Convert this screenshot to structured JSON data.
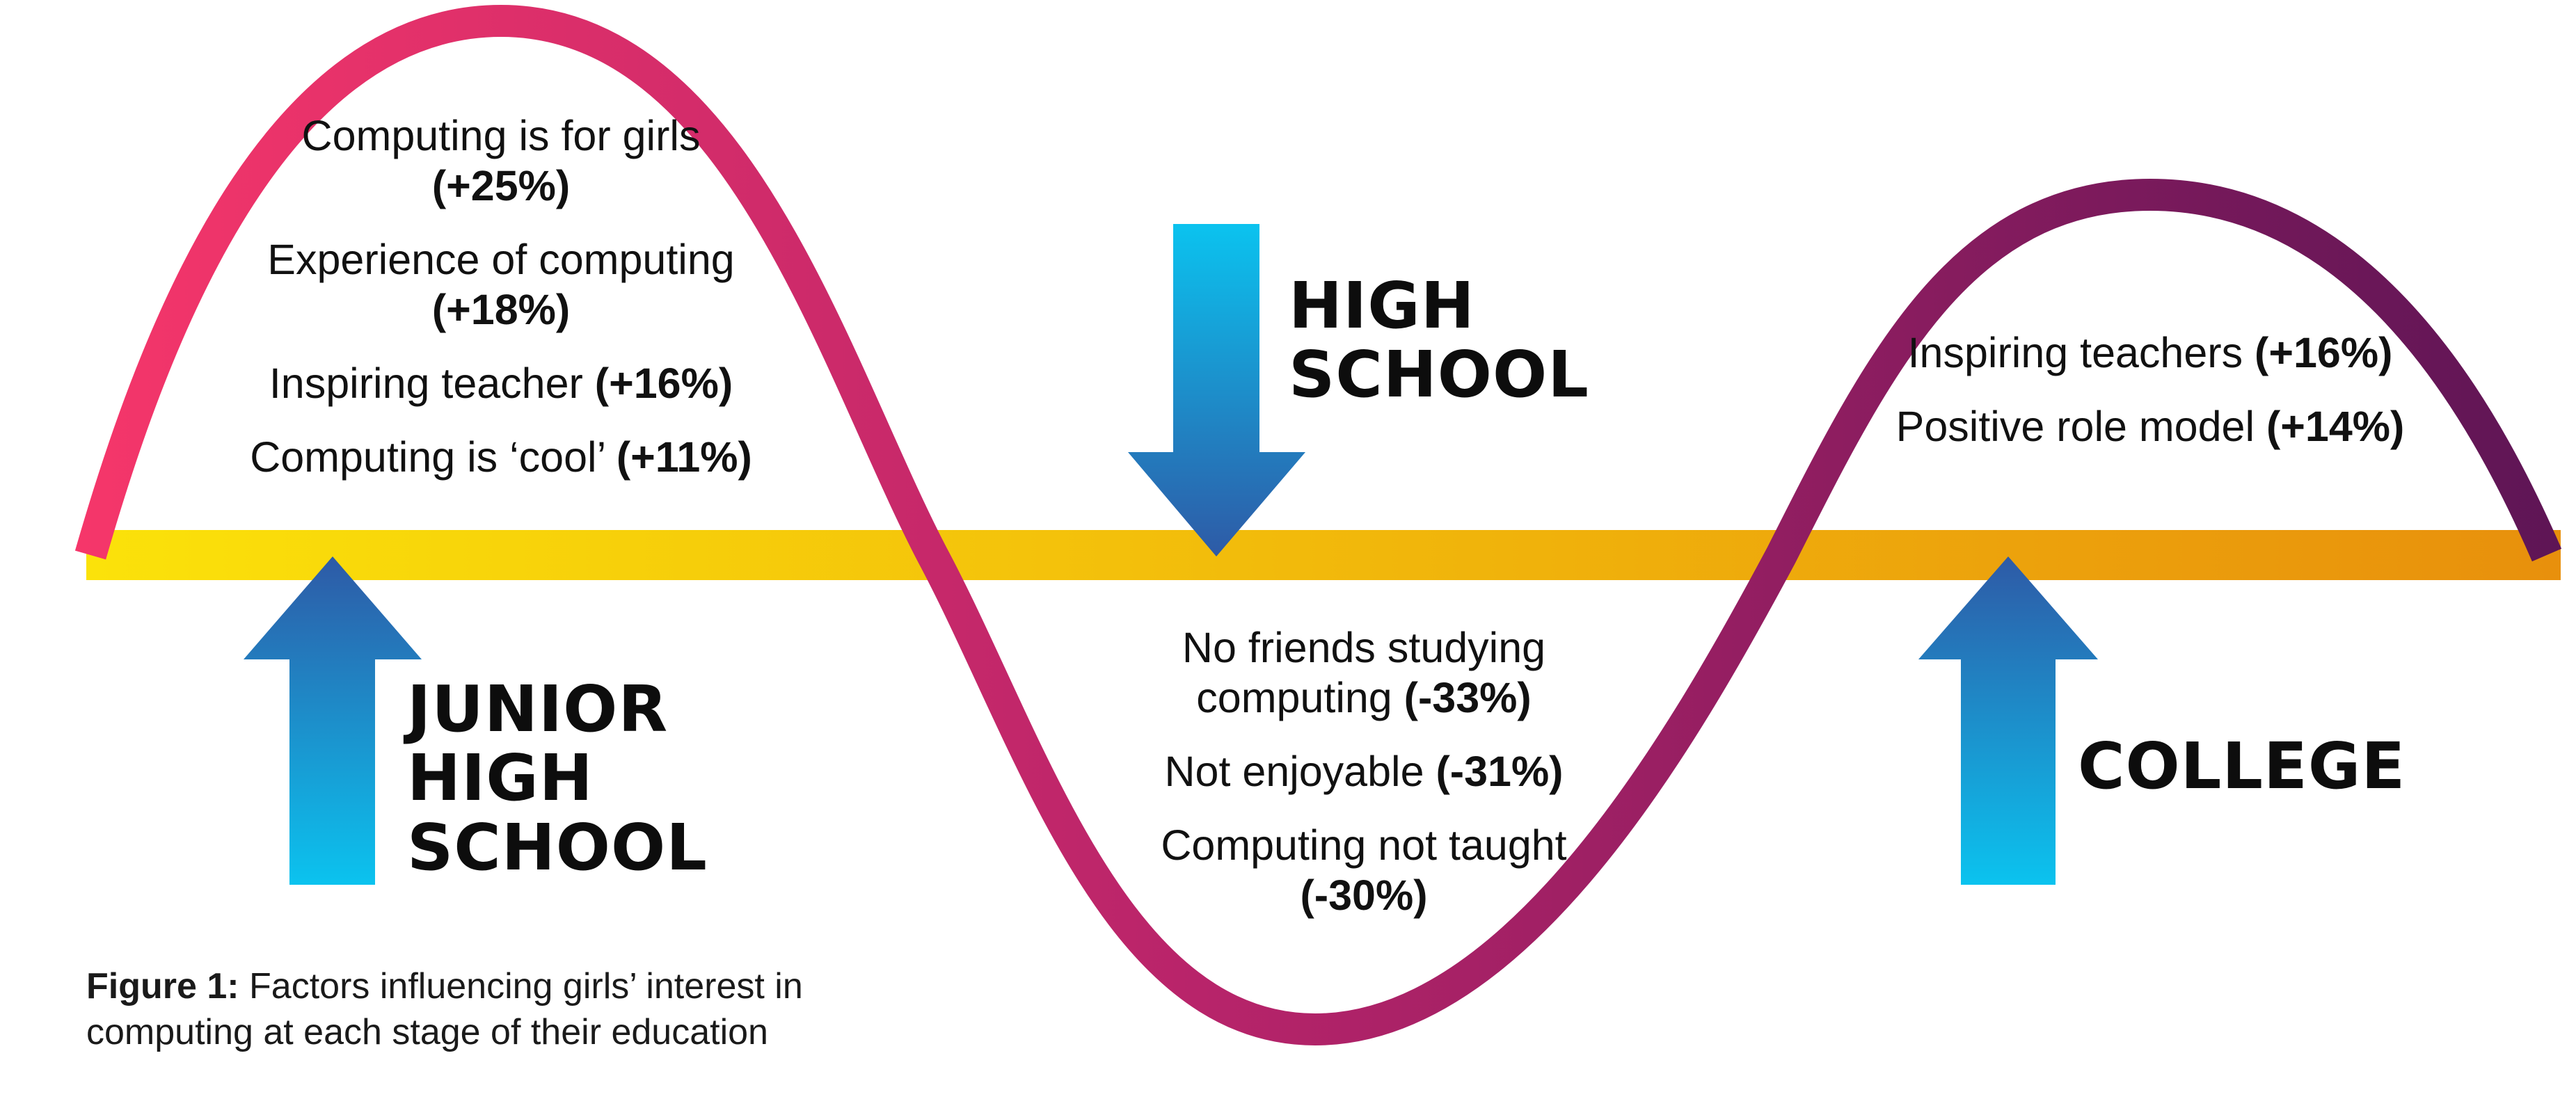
{
  "colors": {
    "wave_start": "#f5366a",
    "wave_mid": "#b8246a",
    "wave_end": "#5e1555",
    "band_start": "#fbe20a",
    "band_end": "#e8900c",
    "arrow_light": "#0bc3ef",
    "arrow_dark": "#2e5aa6"
  },
  "stages": {
    "junior_high": {
      "lines": [
        "JUNIOR",
        "HIGH",
        "SCHOOL"
      ],
      "arrow_direction": "up",
      "factors": [
        {
          "text": "Computing is for girls",
          "pct": "(+25%)"
        },
        {
          "text": "Experience of computing",
          "pct": "(+18%)"
        },
        {
          "text": "Inspiring teacher",
          "pct": "(+16%)"
        },
        {
          "text": "Computing is ‘cool’",
          "pct": "(+11%)"
        }
      ]
    },
    "high_school": {
      "lines": [
        "HIGH",
        "SCHOOL"
      ],
      "arrow_direction": "down",
      "factors": [
        {
          "text": "No friends studying computing",
          "pct": "(-33%)"
        },
        {
          "text": "Not enjoyable",
          "pct": "(-31%)"
        },
        {
          "text": "Computing not taught",
          "pct": "(-30%)"
        }
      ]
    },
    "college": {
      "lines": [
        "COLLEGE"
      ],
      "arrow_direction": "up",
      "factors": [
        {
          "text": "Inspiring teachers",
          "pct": "(+16%)"
        },
        {
          "text": "Positive role model",
          "pct": "(+14%)"
        }
      ]
    }
  },
  "caption": {
    "label": "Figure 1:",
    "text": "Factors influencing girls’ interest in computing at each stage of their education"
  }
}
